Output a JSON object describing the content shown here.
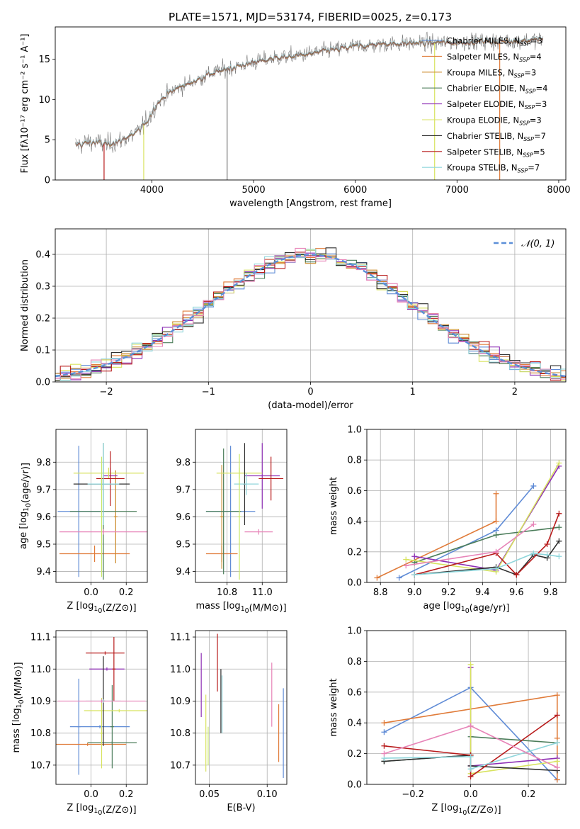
{
  "title": "PLATE=1571, MJD=53174, FIBERID=0025, z=0.173",
  "colors": {
    "Chabrier MILES": "#5f8bd6",
    "Salpeter MILES": "#e07b39",
    "Kroupa MILES": "#cb8a2a",
    "Chabrier ELODIE": "#4a7c59",
    "Salpeter ELODIE": "#8e2fb5",
    "Kroupa ELODIE": "#d8e35f",
    "Chabrier STELIB": "#2f2f2f",
    "Salpeter STELIB": "#b81c1c",
    "Kroupa STELIB": "#8fd6db",
    "data": "#7a7a7a",
    "normal": "#5b8fd8",
    "pink": "#e784b8",
    "lime": "#c9e86a",
    "teal": "#6ec8c8"
  },
  "chart_data": [
    {
      "id": "spectrum",
      "type": "line",
      "xlabel": "wavelength [Angstrom, rest frame]",
      "ylabel": "Flux [fλ10⁻¹⁷ erg cm⁻² s⁻¹ A⁻¹]",
      "xlim": [
        3050,
        8070
      ],
      "ylim": [
        0,
        19
      ],
      "xticks": [
        4000,
        5000,
        6000,
        7000,
        8000
      ],
      "yticks": [
        0,
        5,
        10,
        15
      ],
      "grid": false,
      "legend_position": "right",
      "continuum": [
        [
          3250,
          4.3
        ],
        [
          3400,
          4.8
        ],
        [
          3550,
          4.4
        ],
        [
          3700,
          4.9
        ],
        [
          3850,
          5.8
        ],
        [
          3950,
          7.2
        ],
        [
          4050,
          9.5
        ],
        [
          4200,
          11.1
        ],
        [
          4400,
          12.2
        ],
        [
          4600,
          13.3
        ],
        [
          4800,
          14.0
        ],
        [
          5000,
          14.6
        ],
        [
          5200,
          15.1
        ],
        [
          5400,
          15.4
        ],
        [
          5600,
          15.8
        ],
        [
          5800,
          16.2
        ],
        [
          6000,
          16.6
        ],
        [
          6200,
          16.8
        ],
        [
          6400,
          16.9
        ],
        [
          6600,
          17.0
        ],
        [
          6800,
          17.0
        ],
        [
          7000,
          17.1
        ],
        [
          7200,
          17.2
        ],
        [
          7400,
          17.2
        ],
        [
          7600,
          17.3
        ],
        [
          7850,
          17.4
        ]
      ],
      "legend": [
        {
          "label": "Chabrier MILES",
          "nssp": "3"
        },
        {
          "label": "Salpeter MILES",
          "nssp": "4"
        },
        {
          "label": "Kroupa MILES",
          "nssp": "3"
        },
        {
          "label": "Chabrier ELODIE",
          "nssp": "4"
        },
        {
          "label": "Salpeter ELODIE",
          "nssp": "3"
        },
        {
          "label": "Kroupa ELODIE",
          "nssp": "3"
        },
        {
          "label": "Chabrier STELIB",
          "nssp": "7"
        },
        {
          "label": "Salpeter STELIB",
          "nssp": "5"
        },
        {
          "label": "Kroupa STELIB",
          "nssp": "7"
        }
      ]
    },
    {
      "id": "residuals",
      "type": "histogram",
      "xlabel": "(data-model)/error",
      "ylabel": "Normed distribution",
      "xlim": [
        -2.5,
        2.5
      ],
      "ylim": [
        0,
        0.48
      ],
      "xticks": [
        -2,
        -1,
        0,
        1,
        2
      ],
      "yticks": [
        0.0,
        0.1,
        0.2,
        0.3,
        0.4
      ],
      "grid": true,
      "bin_width": 0.1,
      "normal_label": "𝒩(0, 1)",
      "legend_position": "top-right"
    },
    {
      "id": "z_vs_age",
      "type": "errorbar",
      "xlabel": "Z [log₁₀(Z/Z⊙)]",
      "ylabel": "age  [log₁₀(age/yr)]",
      "xlim": [
        -0.2,
        0.32
      ],
      "ylim": [
        9.36,
        9.92
      ],
      "xticks": [
        0.0,
        0.2
      ],
      "yticks": [
        9.4,
        9.5,
        9.6,
        9.7,
        9.8
      ],
      "grid": true,
      "points": [
        {
          "series": "Chabrier MILES",
          "x": -0.07,
          "xerr": 0.12,
          "y": 9.62,
          "yerr": 0.24
        },
        {
          "series": "Salpeter MILES",
          "x": 0.02,
          "xerr": 0.2,
          "y": 9.465,
          "yerr": 0.03
        },
        {
          "series": "Kroupa MILES",
          "x": 0.14,
          "xerr": 0.01,
          "y": 9.6,
          "yerr": 0.17
        },
        {
          "series": "Chabrier ELODIE",
          "x": 0.07,
          "xerr": 0.19,
          "y": 9.62,
          "yerr": 0.25
        },
        {
          "series": "Salpeter ELODIE",
          "x": 0.11,
          "xerr": 0.04,
          "y": 9.75,
          "yerr": 0.03
        },
        {
          "series": "Kroupa ELODIE",
          "x": 0.1,
          "xerr": 0.2,
          "y": 9.76,
          "yerr": 0.02
        },
        {
          "series": "Chabrier STELIB",
          "x": 0.06,
          "xerr": 0.16,
          "y": 9.72,
          "yerr": 0.02
        },
        {
          "series": "Salpeter STELIB",
          "x": 0.11,
          "xerr": 0.08,
          "y": 9.74,
          "yerr": 0.1
        },
        {
          "series": "Kroupa STELIB",
          "x": 0.07,
          "xerr": 0.09,
          "y": 9.72,
          "yerr": 0.15
        },
        {
          "series": "pink",
          "x": 0.07,
          "xerr": 0.25,
          "y": 9.545,
          "yerr": 0.01
        },
        {
          "series": "lime",
          "x": 0.06,
          "xerr": 0.01,
          "y": 9.6,
          "yerr": 0.22
        }
      ]
    },
    {
      "id": "mass_vs_age",
      "type": "errorbar",
      "xlabel": "mass [log₁₀(M/M⊙)]",
      "xlim": [
        10.62,
        11.14
      ],
      "ylim": [
        9.36,
        9.92
      ],
      "xticks": [
        10.8,
        11.0
      ],
      "yticks": [
        9.4,
        9.5,
        9.6,
        9.7,
        9.8
      ],
      "grid": true,
      "points": [
        {
          "series": "Chabrier MILES",
          "x": 10.82,
          "xerr": 0.14,
          "y": 9.62,
          "yerr": 0.24
        },
        {
          "series": "Salpeter MILES",
          "x": 10.77,
          "xerr": 0.09,
          "y": 9.465,
          "yerr": 0.03
        },
        {
          "series": "Kroupa MILES",
          "x": 10.77,
          "xerr": 0.01,
          "y": 9.6,
          "yerr": 0.19
        },
        {
          "series": "Chabrier ELODIE",
          "x": 10.78,
          "xerr": 0.1,
          "y": 9.62,
          "yerr": 0.23
        },
        {
          "series": "Salpeter ELODIE",
          "x": 11.0,
          "xerr": 0.1,
          "y": 9.75,
          "yerr": 0.12
        },
        {
          "series": "Kroupa ELODIE",
          "x": 10.87,
          "xerr": 0.13,
          "y": 9.76,
          "yerr": 0.02
        },
        {
          "series": "Chabrier STELIB",
          "x": 10.9,
          "xerr": 0.01,
          "y": 9.72,
          "yerr": 0.15
        },
        {
          "series": "Salpeter STELIB",
          "x": 11.05,
          "xerr": 0.07,
          "y": 9.74,
          "yerr": 0.08
        },
        {
          "series": "Kroupa STELIB",
          "x": 10.91,
          "xerr": 0.07,
          "y": 9.72,
          "yerr": 0.04
        },
        {
          "series": "pink",
          "x": 10.98,
          "xerr": 0.08,
          "y": 9.545,
          "yerr": 0.01
        },
        {
          "series": "lime",
          "x": 10.87,
          "xerr": 0.01,
          "y": 9.6,
          "yerr": 0.23
        }
      ]
    },
    {
      "id": "age_vs_weight",
      "type": "line",
      "xlabel": "age  [log₁₀(age/yr)]",
      "ylabel": "mass weight",
      "xlim": [
        8.72,
        9.89
      ],
      "ylim": [
        0,
        1
      ],
      "xticks": [
        8.8,
        9.0,
        9.2,
        9.4,
        9.6,
        9.8
      ],
      "yticks": [
        0.0,
        0.2,
        0.4,
        0.6,
        0.8,
        1.0
      ],
      "grid": true,
      "series": [
        {
          "name": "Chabrier MILES",
          "x": [
            8.91,
            9.48,
            9.7
          ],
          "y": [
            0.03,
            0.34,
            0.63
          ]
        },
        {
          "name": "Salpeter MILES",
          "x": [
            8.78,
            9.48,
            9.48
          ],
          "y": [
            0.03,
            0.4,
            0.58
          ]
        },
        {
          "name": "Chabrier ELODIE",
          "x": [
            9.0,
            9.48,
            9.85
          ],
          "y": [
            0.13,
            0.31,
            0.36
          ]
        },
        {
          "name": "Salpeter ELODIE",
          "x": [
            9.0,
            9.48,
            9.85
          ],
          "y": [
            0.17,
            0.08,
            0.76
          ]
        },
        {
          "name": "Kroupa ELODIE",
          "x": [
            8.95,
            9.48,
            9.85
          ],
          "y": [
            0.15,
            0.07,
            0.78
          ]
        },
        {
          "name": "Chabrier STELIB",
          "x": [
            9.0,
            9.48,
            9.6,
            9.7,
            9.78,
            9.85
          ],
          "y": [
            0.05,
            0.1,
            0.05,
            0.18,
            0.16,
            0.27
          ]
        },
        {
          "name": "Salpeter STELIB",
          "x": [
            9.0,
            9.48,
            9.6,
            9.78,
            9.85
          ],
          "y": [
            0.05,
            0.19,
            0.05,
            0.25,
            0.45
          ]
        },
        {
          "name": "Kroupa STELIB",
          "x": [
            9.0,
            9.48,
            9.7,
            9.78,
            9.85
          ],
          "y": [
            0.05,
            0.09,
            0.19,
            0.18,
            0.17
          ]
        },
        {
          "name": "pink",
          "x": [
            8.95,
            9.48,
            9.7
          ],
          "y": [
            0.11,
            0.2,
            0.38
          ]
        }
      ]
    },
    {
      "id": "z_vs_mass",
      "type": "errorbar",
      "xlabel": "Z [log₁₀(Z/Z⊙)]",
      "ylabel": "mass [log₁₀(M/M⊙)]",
      "xlim": [
        -0.2,
        0.32
      ],
      "ylim": [
        10.64,
        11.12
      ],
      "xticks": [
        0.0,
        0.2
      ],
      "yticks": [
        10.7,
        10.8,
        10.9,
        11.0,
        11.1
      ],
      "grid": true,
      "points": [
        {
          "series": "Chabrier MILES",
          "x": -0.07,
          "xerr": 0.01,
          "y": 10.82,
          "yerr": 0.15
        },
        {
          "series": "Chabrier MILES",
          "x": 0.05,
          "xerr": 0.17,
          "y": 10.82,
          "yerr": 0.005
        },
        {
          "series": "Salpeter MILES",
          "x": -0.02,
          "xerr": 0.22,
          "y": 10.765,
          "yerr": 0.005
        },
        {
          "series": "Chabrier ELODIE",
          "x": 0.12,
          "xerr": 0.14,
          "y": 10.77,
          "yerr": 0.005
        },
        {
          "series": "Chabrier ELODIE",
          "x": 0.12,
          "xerr": 0.01,
          "y": 10.82,
          "yerr": 0.13
        },
        {
          "series": "Salpeter ELODIE",
          "x": 0.09,
          "xerr": 0.1,
          "y": 11.0,
          "yerr": 0.005
        },
        {
          "series": "Kroupa ELODIE",
          "x": 0.16,
          "xerr": 0.2,
          "y": 10.87,
          "yerr": 0.005
        },
        {
          "series": "Kroupa ELODIE",
          "x": 0.06,
          "xerr": 0.01,
          "y": 10.8,
          "yerr": 0.11
        },
        {
          "series": "Chabrier STELIB",
          "x": 0.07,
          "xerr": 0.01,
          "y": 10.9,
          "yerr": 0.14
        },
        {
          "series": "Salpeter STELIB",
          "x": 0.13,
          "xerr": 0.01,
          "y": 11.0,
          "yerr": 0.1
        },
        {
          "series": "Salpeter STELIB",
          "x": 0.08,
          "xerr": 0.11,
          "y": 11.05,
          "yerr": 0.005
        },
        {
          "series": "Kroupa STELIB",
          "x": 0.07,
          "xerr": 0.1,
          "y": 10.9,
          "yerr": 0.005
        },
        {
          "series": "pink",
          "x": 0.06,
          "xerr": 0.25,
          "y": 10.9,
          "yerr": 0.005
        }
      ]
    },
    {
      "id": "ebv_vs_mass",
      "type": "errorbar",
      "xlabel": "E(B-V)",
      "xlim": [
        0.038,
        0.117
      ],
      "ylim": [
        10.64,
        11.12
      ],
      "xticks": [
        0.05,
        0.1
      ],
      "yticks": [
        10.7,
        10.8,
        10.9,
        11.0,
        11.1
      ],
      "grid": true,
      "points": [
        {
          "series": "Salpeter ELODIE",
          "x": 0.043,
          "y": 10.95,
          "yerr": 0.1
        },
        {
          "series": "Kroupa ELODIE",
          "x": 0.047,
          "y": 10.8,
          "yerr": 0.12
        },
        {
          "series": "lime",
          "x": 0.049,
          "y": 10.76,
          "yerr": 0.06
        },
        {
          "series": "Salpeter STELIB",
          "x": 0.057,
          "y": 11.02,
          "yerr": 0.09
        },
        {
          "series": "Chabrier STELIB",
          "x": 0.06,
          "y": 10.9,
          "yerr": 0.1
        },
        {
          "series": "Kroupa STELIB",
          "x": 0.061,
          "y": 10.89,
          "yerr": 0.09
        },
        {
          "series": "pink",
          "x": 0.104,
          "y": 10.92,
          "yerr": 0.1
        },
        {
          "series": "Salpeter MILES",
          "x": 0.11,
          "y": 10.8,
          "yerr": 0.09
        },
        {
          "series": "Chabrier MILES",
          "x": 0.114,
          "y": 10.8,
          "yerr": 0.14
        }
      ]
    },
    {
      "id": "z_vs_weight",
      "type": "line",
      "xlabel": "Z [log₁₀(Z/Z⊙)]",
      "ylabel": "mass weight",
      "xlim": [
        -0.36,
        0.33
      ],
      "ylim": [
        0,
        1
      ],
      "xticks": [
        -0.2,
        0.0,
        0.2
      ],
      "yticks": [
        0.0,
        0.2,
        0.4,
        0.6,
        0.8,
        1.0
      ],
      "grid": true,
      "series": [
        {
          "name": "Chabrier MILES",
          "x": [
            -0.3,
            0.0,
            0.3
          ],
          "y": [
            0.34,
            0.63,
            0.03
          ]
        },
        {
          "name": "Salpeter MILES",
          "x": [
            -0.3,
            0.3,
            0.3,
            0.3
          ],
          "y": [
            0.4,
            0.58,
            0.3,
            0.03
          ]
        },
        {
          "name": "Chabrier ELODIE",
          "x": [
            -0.3,
            0.0,
            0.0,
            0.3
          ],
          "y": [
            0.15,
            0.19,
            0.31,
            0.27
          ]
        },
        {
          "name": "Salpeter ELODIE",
          "x": [
            0.0,
            0.0,
            0.3
          ],
          "y": [
            0.76,
            0.12,
            0.17
          ]
        },
        {
          "name": "Kroupa ELODIE",
          "x": [
            0.0,
            0.0,
            0.3
          ],
          "y": [
            0.78,
            0.07,
            0.15
          ]
        },
        {
          "name": "Chabrier STELIB",
          "x": [
            -0.3,
            0.0,
            0.0,
            0.3
          ],
          "y": [
            0.15,
            0.19,
            0.12,
            0.09
          ]
        },
        {
          "name": "Salpeter STELIB",
          "x": [
            -0.3,
            0.0,
            0.0,
            0.3
          ],
          "y": [
            0.25,
            0.19,
            0.05,
            0.45
          ]
        },
        {
          "name": "Kroupa STELIB",
          "x": [
            -0.3,
            0.0,
            0.0,
            0.3
          ],
          "y": [
            0.17,
            0.18,
            0.1,
            0.27
          ]
        },
        {
          "name": "pink",
          "x": [
            -0.3,
            0.0,
            0.3
          ],
          "y": [
            0.2,
            0.38,
            0.11
          ]
        }
      ]
    }
  ]
}
